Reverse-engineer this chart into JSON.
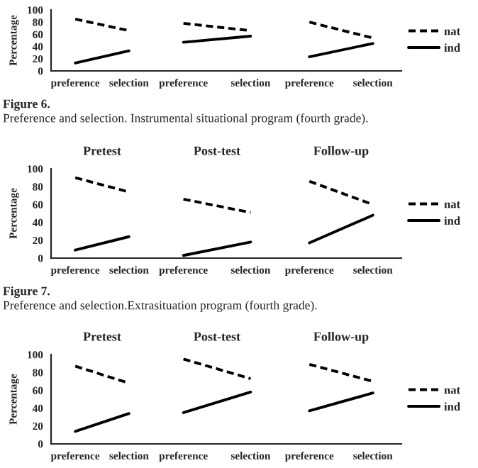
{
  "chart_data": [
    {
      "type": "line",
      "categories": [
        "preference",
        "selection"
      ],
      "ylabel": "Percentage",
      "ylim": [
        0,
        100
      ],
      "yticks": [
        0,
        20,
        40,
        60,
        80,
        100
      ],
      "series": [
        {
          "color": "#000000",
          "line_style": "dashed",
          "values": [
            85,
            66
          ]
        },
        {
          "color": "#000000",
          "line_style": "solid",
          "values": [
            13,
            33
          ]
        }
      ],
      "annotations": [
        "Figure 6.",
        "Preference and selection. Instrumental situational program (fourth grade)."
      ]
    },
    {
      "type": "line",
      "categories": [
        "preference",
        "selection"
      ],
      "ylim": [
        0,
        100
      ],
      "tick_labels": "x",
      "series": [
        {
          "color": "#000000",
          "line_style": "dashed",
          "values": [
            78,
            66
          ]
        },
        {
          "color": "#000000",
          "line_style": "solid",
          "values": [
            47,
            57
          ]
        }
      ]
    },
    {
      "type": "line",
      "categories": [
        "preference",
        "selection"
      ],
      "ylim": [
        0,
        100
      ],
      "tick_labels": "x",
      "legend": "right",
      "series": [
        {
          "name": "nat",
          "color": "#000000",
          "line_style": "dashed",
          "values": [
            80,
            54
          ]
        },
        {
          "name": "ind",
          "color": "#000000",
          "line_style": "solid",
          "values": [
            23,
            45
          ]
        }
      ]
    },
    {
      "type": "line",
      "title": "Pretest",
      "categories": [
        "preference",
        "selection"
      ],
      "ylabel": "Percentage",
      "ylim": [
        0,
        100
      ],
      "yticks": [
        0,
        20,
        40,
        60,
        80,
        100
      ],
      "series": [
        {
          "color": "#000000",
          "line_style": "dashed",
          "values": [
            90,
            74
          ]
        },
        {
          "color": "#000000",
          "line_style": "solid",
          "values": [
            9,
            24
          ]
        }
      ],
      "annotations": [
        "Figure 7.",
        "Preference and selection.Extrasituation program (fourth grade)."
      ]
    },
    {
      "type": "line",
      "title": "Post-test",
      "categories": [
        "preference",
        "selection"
      ],
      "ylim": [
        0,
        100
      ],
      "tick_labels": "x",
      "series": [
        {
          "color": "#000000",
          "line_style": "dashed",
          "values": [
            66,
            51
          ]
        },
        {
          "color": "#000000",
          "line_style": "solid",
          "values": [
            3,
            18
          ]
        }
      ]
    },
    {
      "type": "line",
      "title": "Follow-up",
      "categories": [
        "preference",
        "selection"
      ],
      "ylim": [
        0,
        100
      ],
      "tick_labels": "x",
      "legend": "right",
      "series": [
        {
          "name": "nat",
          "color": "#000000",
          "line_style": "dashed",
          "values": [
            86,
            60
          ]
        },
        {
          "name": "ind",
          "color": "#000000",
          "line_style": "solid",
          "values": [
            17,
            48
          ]
        }
      ]
    },
    {
      "type": "line",
      "title": "Pretest",
      "categories": [
        "preference",
        "selection"
      ],
      "ylabel": "Percentage",
      "ylim": [
        0,
        100
      ],
      "yticks": [
        0,
        20,
        40,
        60,
        80,
        100
      ],
      "series": [
        {
          "color": "#000000",
          "line_style": "dashed",
          "values": [
            87,
            68
          ]
        },
        {
          "color": "#000000",
          "line_style": "solid",
          "values": [
            14,
            34
          ]
        }
      ]
    },
    {
      "type": "line",
      "title": "Post-test",
      "categories": [
        "preference",
        "selection"
      ],
      "ylim": [
        0,
        100
      ],
      "tick_labels": "x",
      "series": [
        {
          "color": "#000000",
          "line_style": "dashed",
          "values": [
            95,
            73
          ]
        },
        {
          "color": "#000000",
          "line_style": "solid",
          "values": [
            35,
            58
          ]
        }
      ]
    },
    {
      "type": "line",
      "title": "Follow-up",
      "categories": [
        "preference",
        "selection"
      ],
      "ylim": [
        0,
        100
      ],
      "tick_labels": "x",
      "legend": "right",
      "series": [
        {
          "name": "nat",
          "color": "#000000",
          "line_style": "dashed",
          "values": [
            89,
            70
          ]
        },
        {
          "name": "ind",
          "color": "#000000",
          "line_style": "solid",
          "values": [
            37,
            57
          ]
        }
      ]
    }
  ]
}
